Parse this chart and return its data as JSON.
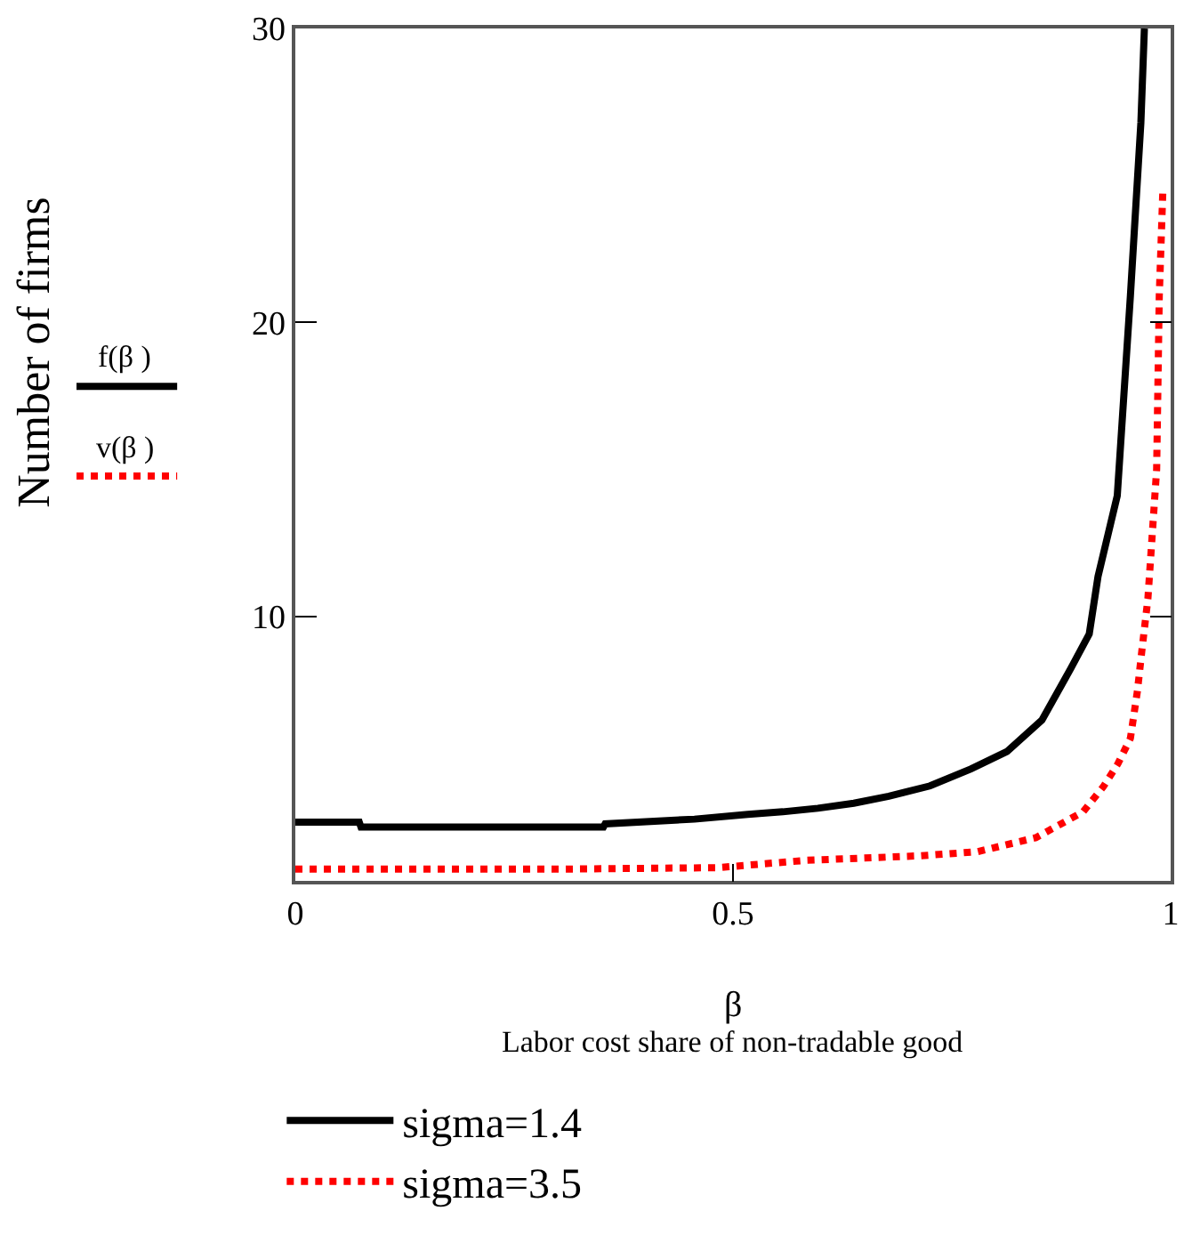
{
  "chart_data": {
    "type": "line",
    "xlabel": "β",
    "ylabel": "Number of firms",
    "annotations": [
      "Labor cost share of non-tradable good",
      "f(β )",
      "v(β )"
    ],
    "xlim": [
      0,
      1
    ],
    "xticks": [
      0,
      0.5,
      1
    ],
    "ylim": [
      1,
      30
    ],
    "yticks": [
      10,
      20,
      30
    ],
    "legend": "bottom",
    "series": [
      {
        "name": "sigma=1.4",
        "color": "#000000",
        "line_style": "solid",
        "x": [
          0,
          0.073,
          0.075,
          0.352,
          0.354,
          0.456,
          0.517,
          0.557,
          0.597,
          0.638,
          0.678,
          0.725,
          0.772,
          0.813,
          0.853,
          0.886,
          0.907,
          0.917,
          0.939,
          0.954,
          0.966,
          0.97
        ],
        "values": [
          3.0,
          3.0,
          2.83,
          2.83,
          2.94,
          3.1,
          3.26,
          3.35,
          3.47,
          3.64,
          3.88,
          4.23,
          4.81,
          5.4,
          6.47,
          8.23,
          9.4,
          11.35,
          14.1,
          20.9,
          26.8,
          30
        ]
      },
      {
        "name": "sigma=3.5",
        "color": "#ff0000",
        "line_style": "dotted",
        "x": [
          0,
          0.3,
          0.483,
          0.584,
          0.712,
          0.779,
          0.846,
          0.9,
          0.923,
          0.94,
          0.954,
          0.962,
          0.967,
          0.974,
          0.984,
          0.987,
          0.991
        ],
        "values": [
          1.4,
          1.4,
          1.45,
          1.7,
          1.85,
          1.99,
          2.47,
          3.35,
          4.2,
          5.0,
          5.85,
          7.45,
          8.8,
          10.6,
          15.0,
          20.9,
          24.4
        ]
      }
    ]
  }
}
